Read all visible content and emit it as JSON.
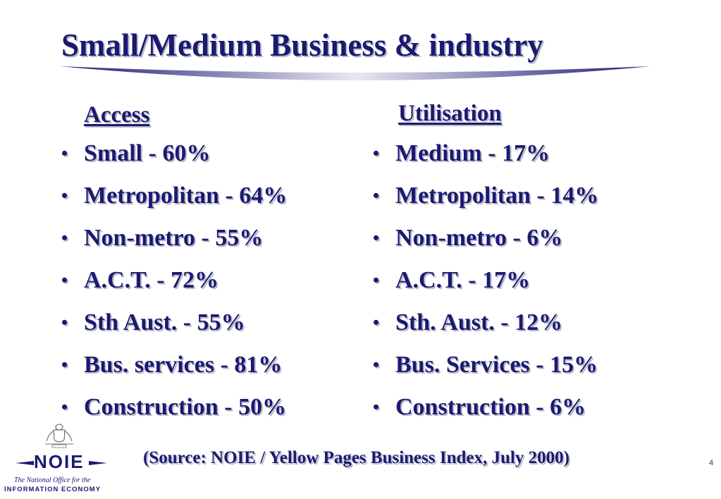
{
  "slide": {
    "title": "Small/Medium Business & industry",
    "source": "(Source: NOIE / Yellow Pages Business Index, July 2000)",
    "page_number": "4"
  },
  "access": {
    "heading": "Access",
    "items": [
      "Small - 60%",
      "Metropolitan - 64%",
      "Non-metro - 55%",
      "A.C.T. - 72%",
      "Sth Aust. - 55%",
      "Bus. services - 81%",
      "Construction - 50%"
    ]
  },
  "utilisation": {
    "heading": "Utilisation",
    "items": [
      "Medium - 17%",
      "Metropolitan - 14%",
      "Non-metro - 6%",
      "A.C.T. - 17%",
      "Sth. Aust. - 12%",
      "Bus. Services - 15%",
      "Construction - 6%"
    ]
  },
  "logo": {
    "wordmark": "NOIE",
    "tagline_line1": "The National Office for the",
    "tagline_line2": "INFORMATION ECONOMY"
  },
  "colors": {
    "text": "#1a1a72",
    "shadow": "#b8b8c8",
    "background": "#ffffff"
  }
}
